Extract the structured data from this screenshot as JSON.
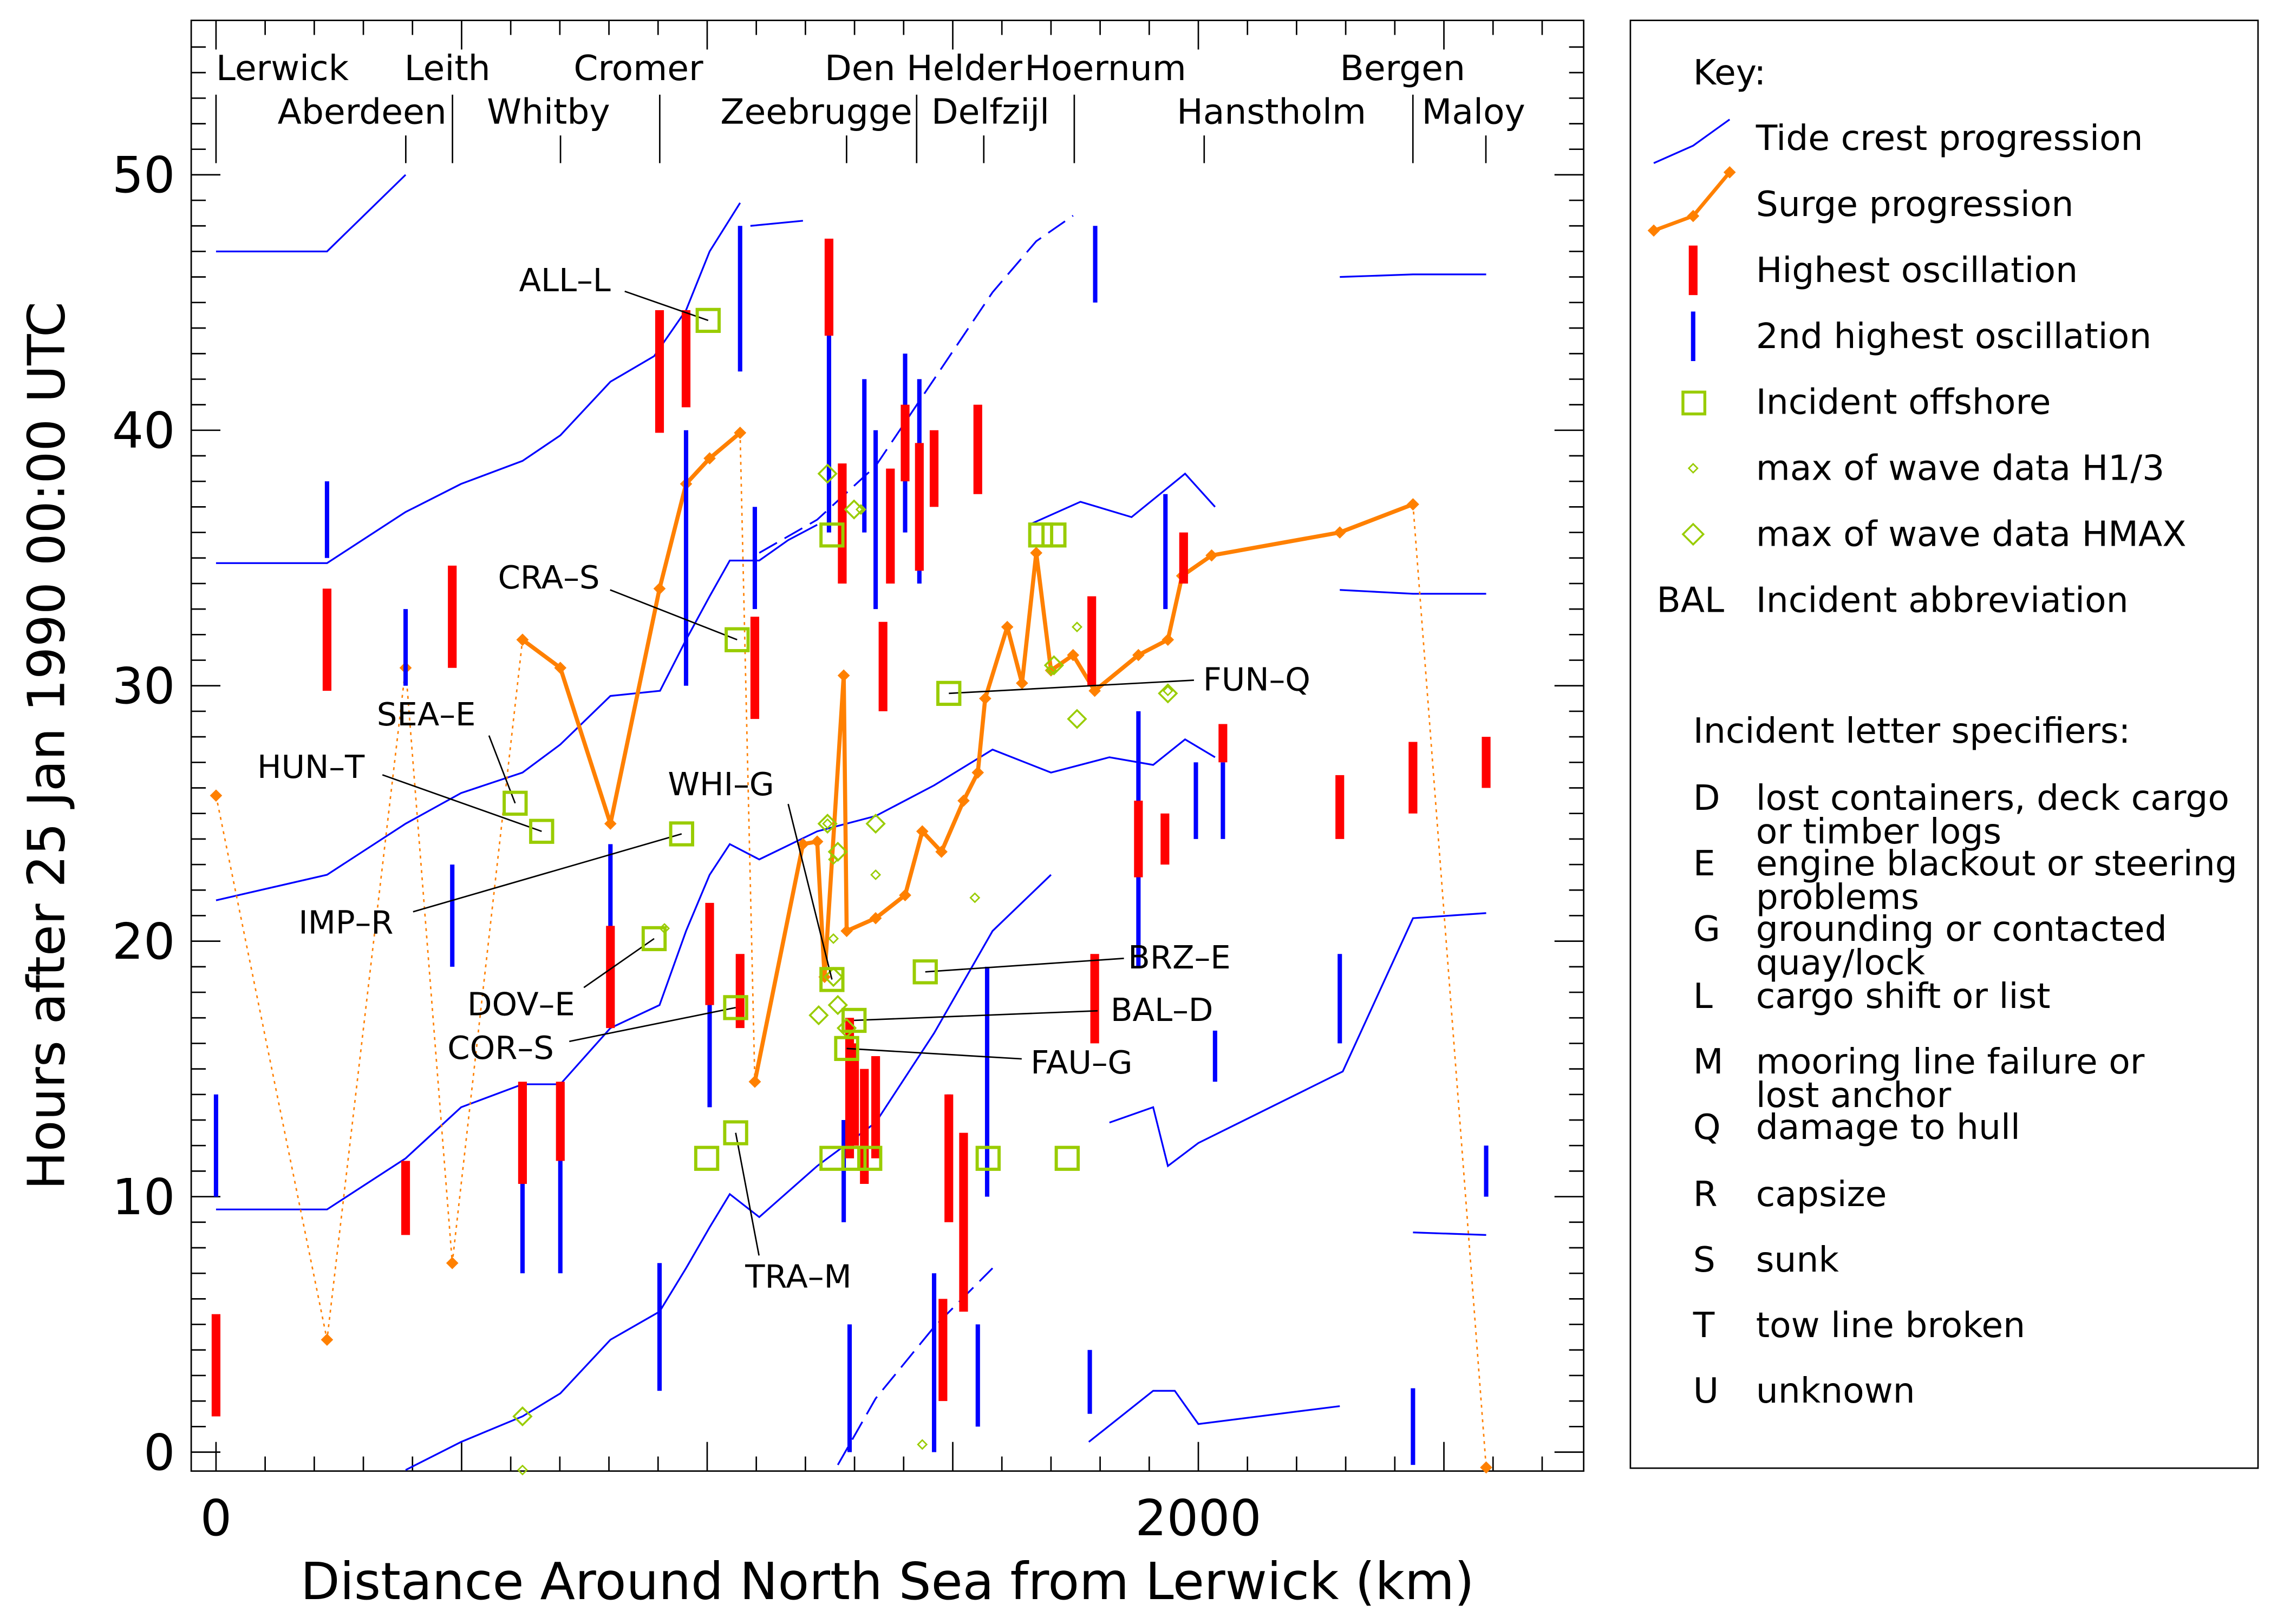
{
  "chart_data": {
    "type": "line",
    "xlabel": "Distance Around North Sea from Lerwick (km)",
    "ylabel": "Hours after 25 Jan 1990 00:00 UTC",
    "xlim": [
      -50,
      2780
    ],
    "ylim": [
      -0.8,
      55.5
    ],
    "x_tick_labels": [
      {
        "value": 0,
        "label": "0"
      },
      {
        "value": 2000,
        "label": "2000"
      }
    ],
    "y_tick_labels": [
      {
        "value": 0,
        "label": "0"
      },
      {
        "value": 10,
        "label": "10"
      },
      {
        "value": 20,
        "label": "20"
      },
      {
        "value": 30,
        "label": "30"
      },
      {
        "value": 40,
        "label": "40"
      },
      {
        "value": 50,
        "label": "50"
      }
    ],
    "stations": [
      {
        "name": "Lerwick",
        "km": 0,
        "row": "top"
      },
      {
        "name": "Aberdeen",
        "km": 481,
        "row": "bottom"
      },
      {
        "name": "Leith",
        "km": 386,
        "row": "top"
      },
      {
        "name": "Whitby",
        "km": 701,
        "row": "bottom"
      },
      {
        "name": "Cromer",
        "km": 903,
        "row": "top"
      },
      {
        "name": "Zeebrugge",
        "km": 1426,
        "row": "bottom"
      },
      {
        "name": "Den Helder",
        "km": 1284,
        "row": "top"
      },
      {
        "name": "Delfzijl",
        "km": 1566,
        "row": "bottom"
      },
      {
        "name": "Hoernum",
        "km": 1748,
        "row": "top"
      },
      {
        "name": "Hanstholm",
        "km": 2012,
        "row": "bottom"
      },
      {
        "name": "Bergen",
        "km": 2437,
        "row": "top"
      },
      {
        "name": "Maloy",
        "km": 2586,
        "row": "bottom"
      }
    ],
    "tide_crest_series": [
      {
        "x": [
          0,
          226,
          386
        ],
        "y": [
          47,
          47,
          50
        ]
      },
      {
        "x": [
          0,
          226,
          386,
          499,
          624,
          701,
          803,
          892,
          957,
          1005,
          1067
        ],
        "y": [
          34.8,
          34.8,
          36.8,
          37.9,
          38.8,
          39.8,
          41.9,
          42.9,
          44.7,
          47.0,
          48.9
        ]
      },
      {
        "x": [
          1088,
          1195
        ],
        "y": [
          48.0,
          48.2
        ]
      },
      {
        "x": [
          1106,
          1224,
          1343,
          1462,
          1581,
          1670,
          1745
        ],
        "y": [
          35.2,
          36.5,
          38.6,
          42.0,
          45.4,
          47.4,
          48.4
        ],
        "dashed": true
      },
      {
        "x": [
          1655,
          1760,
          1864,
          1973,
          2034
        ],
        "y": [
          36.3,
          37.2,
          36.6,
          38.3,
          37.0
        ]
      },
      {
        "x": [
          2288,
          2437,
          2586
        ],
        "y": [
          46.0,
          46.1,
          46.1
        ]
      },
      {
        "x": [
          2288,
          2437,
          2586
        ],
        "y": [
          33.75,
          33.6,
          33.6
        ]
      },
      {
        "x": [
          0,
          226,
          386,
          499,
          624,
          701,
          803,
          904,
          957,
          1005,
          1046,
          1106,
          1165,
          1224
        ],
        "y": [
          21.6,
          22.6,
          24.6,
          25.8,
          26.6,
          27.7,
          29.6,
          29.8,
          31.8,
          33.5,
          34.9,
          34.9,
          35.7,
          36.3
        ]
      },
      {
        "x": [
          0,
          226,
          386,
          499,
          624,
          701,
          803,
          903,
          957,
          1005,
          1046,
          1106,
          1224,
          1343,
          1462,
          1581,
          1700,
          1819,
          1908,
          1973,
          2034
        ],
        "y": [
          9.5,
          9.5,
          11.5,
          13.5,
          14.4,
          14.4,
          16.6,
          17.5,
          20.4,
          22.6,
          23.8,
          23.2,
          24.3,
          24.9,
          26.1,
          27.5,
          26.6,
          27.2,
          26.9,
          27.9,
          27.2
        ]
      },
      {
        "x": [
          386,
          499,
          624,
          701,
          803,
          903,
          957,
          1005,
          1046,
          1106,
          1224,
          1343,
          1462,
          1581,
          1700
        ],
        "y": [
          -0.7,
          0.4,
          1.4,
          2.3,
          4.4,
          5.5,
          7.2,
          8.8,
          10.1,
          9.2,
          11.2,
          12.9,
          16.4,
          20.4,
          22.6
        ],
        "dashed_after": 1224
      },
      {
        "x": [
          1819,
          1908,
          1938,
          2000,
          2294,
          2437,
          2586
        ],
        "y": [
          12.9,
          13.5,
          11.2,
          12.1,
          14.9,
          20.9,
          21.1
        ]
      },
      {
        "x": [
          1266,
          1343,
          1462,
          1581
        ],
        "y": [
          -0.5,
          2.1,
          4.9,
          7.2
        ],
        "dashed": true
      },
      {
        "x": [
          1777,
          1908,
          1952,
          2000,
          2288
        ],
        "y": [
          0.4,
          2.4,
          2.4,
          1.1,
          1.8
        ]
      },
      {
        "x": [
          2437,
          2586
        ],
        "y": [
          8.6,
          8.5
        ]
      }
    ],
    "surge_progression": {
      "dotted_link": {
        "x": [
          0,
          226,
          386,
          481,
          624
        ],
        "y": [
          25.7,
          4.4,
          30.7,
          7.4,
          31.8
        ]
      },
      "segment_1": {
        "x": [
          624,
          701,
          803,
          903,
          957,
          1005,
          1067
        ],
        "y": [
          31.8,
          30.7,
          24.6,
          33.8,
          37.9,
          38.9,
          39.9
        ]
      },
      "dotted_link_2": {
        "x": [
          1067,
          1097
        ],
        "y": [
          39.9,
          14.5
        ]
      },
      "segment_2": {
        "x": [
          1097,
          1195,
          1224,
          1239,
          1278,
          1284,
          1343,
          1403,
          1438,
          1477,
          1522,
          1551,
          1566,
          1611,
          1641,
          1670,
          1700,
          1745,
          1789,
          1878,
          1938,
          1967,
          2027,
          2288,
          2437
        ],
        "y": [
          14.5,
          23.8,
          23.9,
          18.6,
          30.4,
          20.4,
          20.9,
          21.8,
          24.3,
          23.5,
          25.5,
          26.6,
          29.5,
          32.3,
          30.1,
          35.2,
          30.6,
          31.2,
          29.8,
          31.2,
          31.8,
          34.3,
          35.1,
          36.0,
          37.1
        ]
      },
      "dotted_link_3": {
        "x": [
          2437,
          2586
        ],
        "y": [
          37.1,
          -0.6
        ]
      }
    },
    "highest_oscillation": [
      [
        0,
        1.4,
        5.4
      ],
      [
        226,
        29.8,
        33.8
      ],
      [
        386,
        8.5,
        11.4
      ],
      [
        481,
        30.7,
        34.7
      ],
      [
        624,
        10.5,
        14.5
      ],
      [
        701,
        11.4,
        14.5
      ],
      [
        803,
        16.6,
        20.6
      ],
      [
        903,
        39.9,
        44.7
      ],
      [
        957,
        40.9,
        44.7
      ],
      [
        1005,
        17.5,
        21.5
      ],
      [
        1067,
        16.6,
        19.5
      ],
      [
        1097,
        28.7,
        32.7
      ],
      [
        1248,
        43.7,
        47.5
      ],
      [
        1275,
        34.0,
        38.7
      ],
      [
        1290,
        11.5,
        17.0
      ],
      [
        1300,
        12.0,
        16.0
      ],
      [
        1320,
        10.5,
        15.0
      ],
      [
        1343,
        11.5,
        15.5
      ],
      [
        1358,
        29.0,
        32.5
      ],
      [
        1373,
        34.0,
        38.5
      ],
      [
        1403,
        38.0,
        41.0
      ],
      [
        1432,
        34.5,
        39.5
      ],
      [
        1462,
        37.0,
        40.0
      ],
      [
        1480,
        2.0,
        6.0
      ],
      [
        1492,
        9.0,
        14.0
      ],
      [
        1522,
        5.5,
        12.5
      ],
      [
        1551,
        37.5,
        41.0
      ],
      [
        1783,
        30.0,
        33.5
      ],
      [
        1789,
        16.0,
        19.5
      ],
      [
        1878,
        22.5,
        25.5
      ],
      [
        1932,
        23.0,
        25.0
      ],
      [
        1970,
        34.0,
        36.0
      ],
      [
        2050,
        27.0,
        28.5
      ],
      [
        2288,
        24.0,
        26.5
      ],
      [
        2437,
        25.0,
        27.8
      ],
      [
        2586,
        26.0,
        28.0
      ]
    ],
    "second_highest_oscillation": [
      [
        0,
        10.0,
        14.0
      ],
      [
        226,
        35.0,
        38.0
      ],
      [
        386,
        30.0,
        33.0
      ],
      [
        481,
        19.0,
        23.0
      ],
      [
        624,
        7.0,
        11.5
      ],
      [
        701,
        7.0,
        12.0
      ],
      [
        803,
        17.0,
        23.8
      ],
      [
        903,
        2.4,
        7.4
      ],
      [
        957,
        30.0,
        40.0
      ],
      [
        1005,
        13.5,
        19.5
      ],
      [
        1067,
        42.3,
        48.0
      ],
      [
        1097,
        33.0,
        37.0
      ],
      [
        1248,
        36.0,
        46.0
      ],
      [
        1278,
        9.0,
        13.0
      ],
      [
        1290,
        0.0,
        5.0
      ],
      [
        1320,
        36.0,
        42.0
      ],
      [
        1343,
        33.0,
        40.0
      ],
      [
        1403,
        36.0,
        43.0
      ],
      [
        1432,
        34.0,
        42.0
      ],
      [
        1462,
        0.0,
        7.0
      ],
      [
        1492,
        10.0,
        14.0
      ],
      [
        1551,
        1.0,
        5.0
      ],
      [
        1570,
        10.0,
        19.0
      ],
      [
        1779,
        1.5,
        4.0
      ],
      [
        1790,
        45.0,
        48.0
      ],
      [
        1878,
        19.0,
        29.0
      ],
      [
        1933,
        33.0,
        37.5
      ],
      [
        1995,
        24.0,
        27.0
      ],
      [
        2034,
        14.5,
        16.5
      ],
      [
        2050,
        24.0,
        27.0
      ],
      [
        2288,
        16.0,
        19.5
      ],
      [
        2437,
        -0.5,
        2.5
      ],
      [
        2586,
        10.0,
        12.0
      ]
    ],
    "incidents": [
      {
        "abbr": "ALL–L",
        "km": 1002,
        "h": 44.3
      },
      {
        "abbr": "CRA–S",
        "km": 1061,
        "h": 31.8
      },
      {
        "abbr": "SEA–E",
        "km": 609,
        "h": 25.4
      },
      {
        "abbr": "HUN–T",
        "km": 663,
        "h": 24.3
      },
      {
        "abbr": "IMP–R",
        "km": 948,
        "h": 24.2
      },
      {
        "abbr": "WHI–G",
        "km": 1254,
        "h": 18.5
      },
      {
        "abbr": "DOV–E",
        "km": 892,
        "h": 20.1
      },
      {
        "abbr": "COR–S",
        "km": 1058,
        "h": 17.4
      },
      {
        "abbr": "BRZ–E",
        "km": 1444,
        "h": 18.8
      },
      {
        "abbr": "BAL–D",
        "km": 1299,
        "h": 16.9
      },
      {
        "abbr": "FAU–G",
        "km": 1284,
        "h": 15.8
      },
      {
        "abbr": "FUN–Q",
        "km": 1492,
        "h": 29.7
      },
      {
        "abbr": "TRA–M",
        "km": 1058,
        "h": 12.5
      }
    ],
    "unlabeled_incidents": [
      [
        999,
        11.5
      ],
      [
        1254,
        35.9
      ],
      [
        1254,
        11.5
      ],
      [
        1299,
        11.5
      ],
      [
        1331,
        11.5
      ],
      [
        1572,
        11.5
      ],
      [
        1733,
        11.5
      ],
      [
        1679,
        35.9
      ],
      [
        1706,
        35.9
      ]
    ],
    "wave_h13_max": [
      [
        624,
        -0.7
      ],
      [
        913,
        20.5
      ],
      [
        1245,
        24.6
      ],
      [
        1257,
        23.2
      ],
      [
        1313,
        36.9
      ],
      [
        1343,
        22.6
      ],
      [
        1438,
        0.3
      ],
      [
        1545,
        21.7
      ],
      [
        1700,
        30.6
      ],
      [
        1753,
        32.3
      ],
      [
        1938,
        29.8
      ],
      [
        1257,
        20.1
      ]
    ],
    "wave_hmax_max": [
      [
        624,
        1.4
      ],
      [
        1245,
        38.3
      ],
      [
        1299,
        36.9
      ],
      [
        1245,
        24.6
      ],
      [
        1266,
        23.5
      ],
      [
        1343,
        24.6
      ],
      [
        1227,
        17.1
      ],
      [
        1266,
        17.5
      ],
      [
        1284,
        16.6
      ],
      [
        1706,
        30.8
      ],
      [
        1753,
        28.7
      ],
      [
        1938,
        29.7
      ],
      [
        1257,
        18.6
      ]
    ],
    "colors": {
      "tide": "#0000ff",
      "surge": "#ff8000",
      "highest": "#ff0000",
      "second": "#0000ff",
      "incident": "#99cc00"
    }
  },
  "legend": {
    "title": "Key:",
    "items": [
      {
        "key": "tide",
        "label": "Tide crest progression"
      },
      {
        "key": "surge",
        "label": "Surge progression"
      },
      {
        "key": "highest",
        "label": "Highest oscillation"
      },
      {
        "key": "second",
        "label": "2nd highest oscillation"
      },
      {
        "key": "offshore",
        "label": "Incident offshore"
      },
      {
        "key": "h13",
        "label": "max of wave data H1/3"
      },
      {
        "key": "hmax",
        "label": "max of wave data HMAX"
      },
      {
        "key": "abbr",
        "symbol": "BAL",
        "label": "Incident abbreviation"
      }
    ],
    "specifiers_title": "Incident letter specifiers:",
    "specifiers": [
      {
        "letter": "D",
        "lines": [
          "lost containers, deck cargo",
          "or timber logs"
        ]
      },
      {
        "letter": "E",
        "lines": [
          "engine blackout or steering",
          "problems"
        ]
      },
      {
        "letter": "G",
        "lines": [
          "grounding or contacted",
          "quay/lock"
        ]
      },
      {
        "letter": "L",
        "lines": [
          "cargo shift or list"
        ]
      },
      {
        "letter": "M",
        "lines": [
          "mooring line failure or",
          "lost anchor"
        ]
      },
      {
        "letter": "Q",
        "lines": [
          "damage to hull"
        ]
      },
      {
        "letter": "R",
        "lines": [
          "capsize"
        ]
      },
      {
        "letter": "S",
        "lines": [
          "sunk"
        ]
      },
      {
        "letter": "T",
        "lines": [
          "tow line broken"
        ]
      },
      {
        "letter": "U",
        "lines": [
          "unknown"
        ]
      }
    ]
  }
}
